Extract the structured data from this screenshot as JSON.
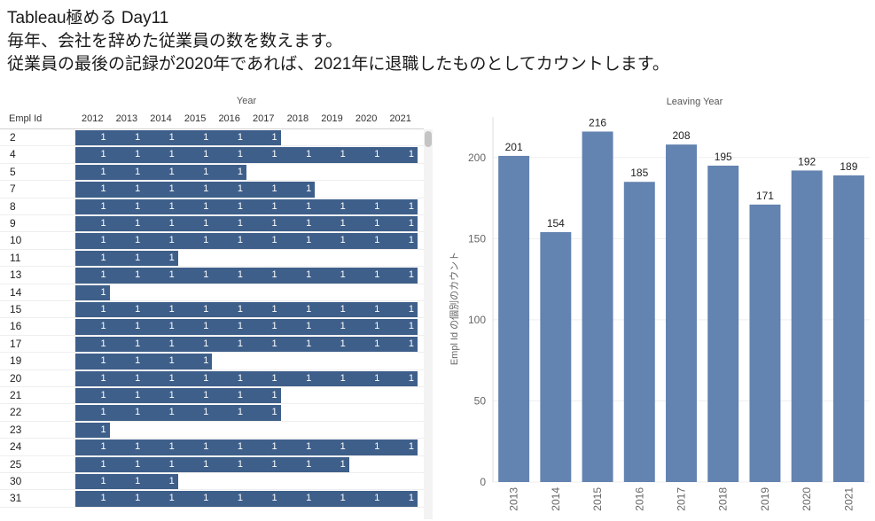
{
  "title": {
    "line1": "Tableau極める Day11",
    "line2": "毎年、会社を辞めた従業員の数を数えます。",
    "line3": "従業員の最後の記録が2020年であれば、2021年に退職したものとしてカウントします。"
  },
  "table": {
    "column_group_label": "Year",
    "row_field_label": "Empl Id",
    "years": [
      "2012",
      "2013",
      "2014",
      "2015",
      "2016",
      "2017",
      "2018",
      "2019",
      "2020",
      "2021"
    ],
    "cell_value": "1",
    "fill_color": "#3e5f8a",
    "rows": [
      {
        "id": "2",
        "start": 0,
        "count": 6
      },
      {
        "id": "4",
        "start": 0,
        "count": 10
      },
      {
        "id": "5",
        "start": 0,
        "count": 5
      },
      {
        "id": "7",
        "start": 0,
        "count": 7
      },
      {
        "id": "8",
        "start": 0,
        "count": 10
      },
      {
        "id": "9",
        "start": 0,
        "count": 10
      },
      {
        "id": "10",
        "start": 0,
        "count": 10
      },
      {
        "id": "11",
        "start": 0,
        "count": 3
      },
      {
        "id": "13",
        "start": 0,
        "count": 10
      },
      {
        "id": "14",
        "start": 0,
        "count": 1
      },
      {
        "id": "15",
        "start": 0,
        "count": 10
      },
      {
        "id": "16",
        "start": 0,
        "count": 10
      },
      {
        "id": "17",
        "start": 0,
        "count": 10
      },
      {
        "id": "19",
        "start": 0,
        "count": 4
      },
      {
        "id": "20",
        "start": 0,
        "count": 10
      },
      {
        "id": "21",
        "start": 0,
        "count": 6
      },
      {
        "id": "22",
        "start": 0,
        "count": 6
      },
      {
        "id": "23",
        "start": 0,
        "count": 1
      },
      {
        "id": "24",
        "start": 0,
        "count": 10
      },
      {
        "id": "25",
        "start": 0,
        "count": 8
      },
      {
        "id": "30",
        "start": 0,
        "count": 3
      },
      {
        "id": "31",
        "start": 0,
        "count": 10
      }
    ]
  },
  "chart_data": {
    "type": "bar",
    "title": "Leaving Year",
    "xlabel": "",
    "ylabel": "Empl Id の個別のカウント",
    "categories": [
      "2013",
      "2014",
      "2015",
      "2016",
      "2017",
      "2018",
      "2019",
      "2020",
      "2021"
    ],
    "values": [
      201,
      154,
      216,
      185,
      208,
      195,
      171,
      192,
      189
    ],
    "ylim": [
      0,
      225
    ],
    "yticks": [
      0,
      50,
      100,
      150,
      200
    ],
    "grid": true,
    "bar_color": "#6383b0"
  }
}
